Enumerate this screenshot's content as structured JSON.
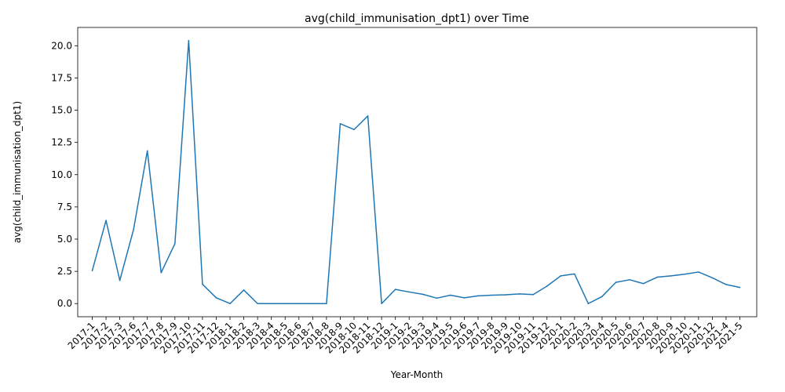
{
  "chart_data": {
    "type": "line",
    "title": "avg(child_immunisation_dpt1) over Time",
    "xlabel": "Year-Month",
    "ylabel": "avg(child_immunisation_dpt1)",
    "ylim": [
      -1.02,
      21.42
    ],
    "yticks": [
      "0.0",
      "2.5",
      "5.0",
      "7.5",
      "10.0",
      "12.5",
      "15.0",
      "17.5",
      "20.0"
    ],
    "grid": false,
    "line_color": "#1f77b4",
    "categories": [
      "2017-1",
      "2017-2",
      "2017-3",
      "2017-6",
      "2017-7",
      "2017-8",
      "2017-9",
      "2017-10",
      "2017-11",
      "2017-12",
      "2018-1",
      "2018-2",
      "2018-3",
      "2018-4",
      "2018-5",
      "2018-6",
      "2018-7",
      "2018-8",
      "2018-9",
      "2018-10",
      "2018-11",
      "2018-12",
      "2019-1",
      "2019-2",
      "2019-3",
      "2019-4",
      "2019-5",
      "2019-6",
      "2019-7",
      "2019-8",
      "2019-9",
      "2019-10",
      "2019-11",
      "2019-12",
      "2020-1",
      "2020-2",
      "2020-3",
      "2020-4",
      "2020-5",
      "2020-6",
      "2020-7",
      "2020-8",
      "2020-9",
      "2020-10",
      "2020-11",
      "2020-12",
      "2021-4",
      "2021-5"
    ],
    "values": [
      2.55,
      6.45,
      1.8,
      5.75,
      11.85,
      2.4,
      4.65,
      20.4,
      1.5,
      0.45,
      0.0,
      1.05,
      0.0,
      0.0,
      0.0,
      0.0,
      0.0,
      0.0,
      13.95,
      13.5,
      14.55,
      0.0,
      1.1,
      0.9,
      0.72,
      0.42,
      0.65,
      0.45,
      0.6,
      0.65,
      0.68,
      0.75,
      0.7,
      1.35,
      2.15,
      2.3,
      0.0,
      0.55,
      1.65,
      1.85,
      1.55,
      2.05,
      2.15,
      2.28,
      2.45,
      2.0,
      1.48,
      1.25
    ]
  }
}
